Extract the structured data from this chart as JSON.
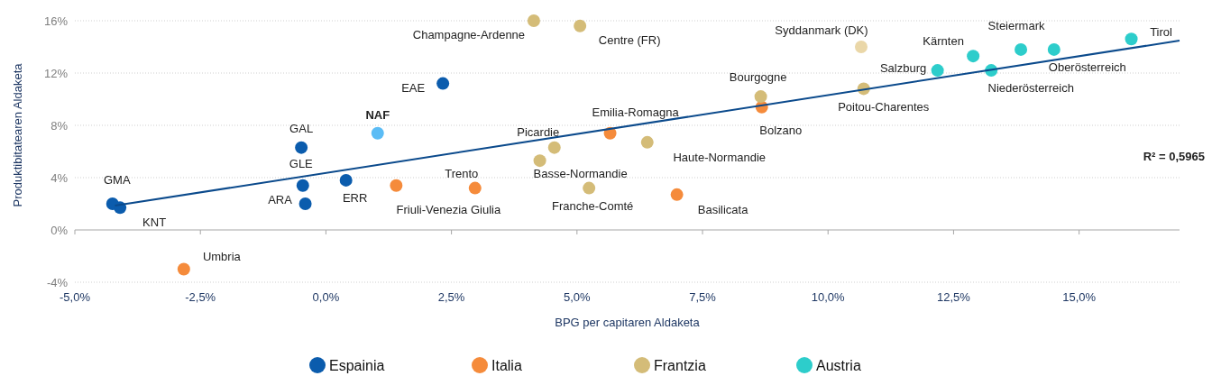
{
  "chart_data": {
    "type": "scatter",
    "xlabel": "BPG per capitaren Aldaketa",
    "ylabel": "Produktibitatearen Aldaketa",
    "xlim": [
      -5,
      17
    ],
    "ylim": [
      -4,
      16
    ],
    "xticks": [
      {
        "value": -5,
        "label": "-5,0%"
      },
      {
        "value": -2.5,
        "label": "-2,5%"
      },
      {
        "value": 0,
        "label": "0,0%"
      },
      {
        "value": 2.5,
        "label": "2,5%"
      },
      {
        "value": 5,
        "label": "5,0%"
      },
      {
        "value": 7.5,
        "label": "7,5%"
      },
      {
        "value": 10,
        "label": "10,0%"
      },
      {
        "value": 12.5,
        "label": "12,5%"
      },
      {
        "value": 15,
        "label": "15,0%"
      }
    ],
    "yticks": [
      {
        "value": -4,
        "label": "-4%"
      },
      {
        "value": 0,
        "label": "0%"
      },
      {
        "value": 4,
        "label": "4%"
      },
      {
        "value": 8,
        "label": "8%"
      },
      {
        "value": 12,
        "label": "12%"
      },
      {
        "value": 16,
        "label": "16%"
      }
    ],
    "grid": "y",
    "legend": "bottom",
    "marker": "circle",
    "series": [
      {
        "name": "Espainia",
        "color": "#0b5cad",
        "x": [
          -4.25,
          -4.1,
          -0.49,
          -0.46,
          -0.41,
          0.4,
          1.03,
          2.33
        ],
        "values": [
          2.0,
          1.7,
          6.3,
          3.4,
          2.0,
          3.8,
          7.4,
          11.2
        ],
        "colors": [
          "#0b5cad",
          "#0b5cad",
          "#0b5cad",
          "#0b5cad",
          "#0b5cad",
          "#0b5cad",
          "#5bbcf5",
          "#0b5cad"
        ]
      },
      {
        "name": "Italia",
        "color": "#f58b3b",
        "x": [
          -2.83,
          1.4,
          2.97,
          5.66,
          8.68,
          6.99
        ],
        "values": [
          -3.0,
          3.4,
          3.2,
          7.4,
          9.4,
          2.7
        ]
      },
      {
        "name": "Frantzia",
        "color": "#d4bc78",
        "x": [
          4.14,
          5.06,
          4.55,
          4.26,
          6.4,
          5.24,
          8.66,
          10.71
        ],
        "values": [
          16.0,
          15.6,
          6.3,
          5.3,
          6.7,
          3.2,
          10.2,
          10.8
        ]
      },
      {
        "color": "#ead7a8",
        "x": [
          10.66
        ],
        "values": [
          14.0
        ]
      },
      {
        "name": "Austria",
        "color": "#2dcdcb",
        "x": [
          12.18,
          12.89,
          13.25,
          13.84,
          14.5,
          16.04
        ],
        "values": [
          12.2,
          13.3,
          12.2,
          13.8,
          13.8,
          14.6
        ]
      },
      {
        "type": "line",
        "color": "#0b4a8c",
        "x": [
          -4.2,
          17
        ],
        "values": [
          1.86,
          14.48
        ],
        "marker": "none",
        "line_style": "solid"
      }
    ],
    "annotations": [
      {
        "text": "GMA",
        "x": -4.25,
        "y": 2.0
      },
      {
        "text": "KNT",
        "x": -4.1,
        "y": 1.7
      },
      {
        "text": "GAL",
        "x": -0.49,
        "y": 6.3
      },
      {
        "text": "GLE",
        "x": -0.46,
        "y": 3.4
      },
      {
        "text": "ARA",
        "x": -0.41,
        "y": 2.0
      },
      {
        "text": "ERR",
        "x": 0.4,
        "y": 3.8
      },
      {
        "text": "NAF",
        "x": 1.03,
        "y": 7.4
      },
      {
        "text": "EAE",
        "x": 2.33,
        "y": 11.2
      },
      {
        "text": "Umbria",
        "x": -2.83,
        "y": -3.0
      },
      {
        "text": "Friuli-Venezia Giulia",
        "x": 1.4,
        "y": 3.4
      },
      {
        "text": "Trento",
        "x": 2.97,
        "y": 3.2
      },
      {
        "text": "Emilia-Romagna",
        "x": 5.66,
        "y": 7.4
      },
      {
        "text": "Bolzano",
        "x": 8.68,
        "y": 9.4
      },
      {
        "text": "Basilicata",
        "x": 6.99,
        "y": 2.7
      },
      {
        "text": "Champagne-Ardenne",
        "x": 4.14,
        "y": 16.0
      },
      {
        "text": "Centre (FR)",
        "x": 5.06,
        "y": 15.6
      },
      {
        "text": "Picardie",
        "x": 4.55,
        "y": 6.3
      },
      {
        "text": "Basse-Normandie",
        "x": 4.26,
        "y": 5.3
      },
      {
        "text": "Haute-Normandie",
        "x": 6.4,
        "y": 6.7
      },
      {
        "text": "Franche-Comté",
        "x": 5.24,
        "y": 3.2
      },
      {
        "text": "Bourgogne",
        "x": 8.66,
        "y": 10.2
      },
      {
        "text": "Poitou-Charentes",
        "x": 10.71,
        "y": 10.8
      },
      {
        "text": "Syddanmark (DK)",
        "x": 10.66,
        "y": 14.0
      },
      {
        "text": "Salzburg",
        "x": 12.18,
        "y": 12.2
      },
      {
        "text": "Kärnten",
        "x": 12.89,
        "y": 13.3
      },
      {
        "text": "Niederösterreich",
        "x": 13.25,
        "y": 12.2
      },
      {
        "text": "Steiermark",
        "x": 13.84,
        "y": 13.8
      },
      {
        "text": "Oberösterreich",
        "x": 14.5,
        "y": 13.8
      },
      {
        "text": "Tirol",
        "x": 16.04,
        "y": 14.6
      },
      "R² = 0,5965"
    ]
  }
}
